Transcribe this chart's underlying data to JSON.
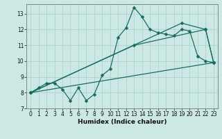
{
  "background_color": "#cce8e5",
  "grid_color": "#add4d0",
  "line_color": "#1a6b5e",
  "xlabel": "Humidex (Indice chaleur)",
  "xlim": [
    -0.5,
    23.5
  ],
  "ylim": [
    7,
    13.6
  ],
  "yticks": [
    7,
    8,
    9,
    10,
    11,
    12,
    13
  ],
  "xticks": [
    0,
    1,
    2,
    3,
    4,
    5,
    6,
    7,
    8,
    9,
    10,
    11,
    12,
    13,
    14,
    15,
    16,
    17,
    18,
    19,
    20,
    21,
    22,
    23
  ],
  "line1_x": [
    0,
    1,
    2,
    3,
    4,
    5,
    6,
    7,
    8,
    9,
    10,
    11,
    12,
    13,
    14,
    15,
    16,
    17,
    18,
    19,
    20,
    21,
    22,
    23
  ],
  "line1_y": [
    8.0,
    8.3,
    8.6,
    8.6,
    8.2,
    7.5,
    8.3,
    7.5,
    7.9,
    9.1,
    9.5,
    11.5,
    12.1,
    13.4,
    12.8,
    12.0,
    11.8,
    11.7,
    11.6,
    12.0,
    11.9,
    10.3,
    10.0,
    9.9
  ],
  "line2_x": [
    0,
    23
  ],
  "line2_y": [
    8.0,
    9.9
  ],
  "line3_x": [
    0,
    19,
    22,
    23
  ],
  "line3_y": [
    8.0,
    12.4,
    12.0,
    9.9
  ],
  "line4_x": [
    0,
    13,
    22,
    23
  ],
  "line4_y": [
    8.0,
    11.0,
    12.0,
    9.9
  ],
  "marker_size": 2.5,
  "linewidth": 0.9,
  "tick_labelsize": 5.5,
  "xlabel_fontsize": 6.5
}
